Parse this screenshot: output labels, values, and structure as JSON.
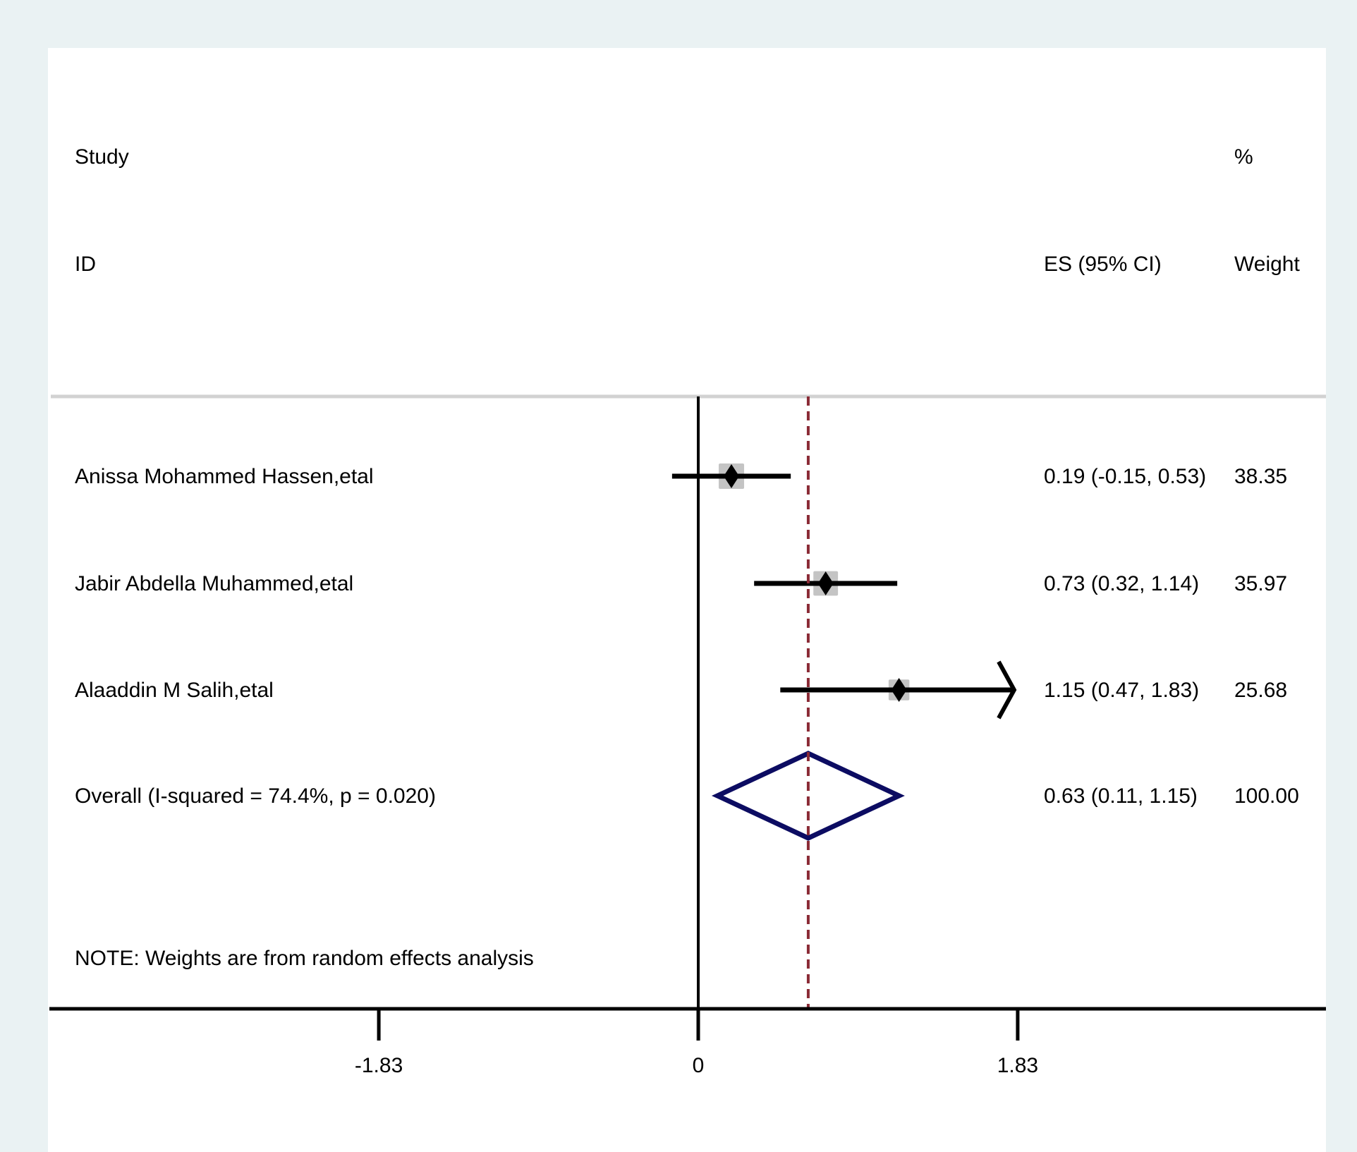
{
  "header": {
    "col1_line1": "Study",
    "col1_line2": "ID",
    "col2": "ES (95% CI)",
    "col3_line1": "%",
    "col3_line2": "Weight"
  },
  "note": "NOTE: Weights are from random effects analysis",
  "chart_data": {
    "type": "forest",
    "xlabel": "",
    "xlim": [
      -2.65,
      4.69
    ],
    "ticks": [
      -1.83,
      0,
      1.83
    ],
    "tick_labels": [
      "-1.83",
      "0",
      "1.83"
    ],
    "null_line": 0,
    "overall_line": 0.63,
    "studies": [
      {
        "id": "Anissa Mohammed Hassen,etal",
        "es": 0.19,
        "lo": -0.15,
        "hi": 0.53,
        "ci_text": "0.19 (-0.15, 0.53)",
        "weight": 38.35,
        "weight_text": "38.35",
        "clipped": false
      },
      {
        "id": "Jabir Abdella Muhammed,etal",
        "es": 0.73,
        "lo": 0.32,
        "hi": 1.14,
        "ci_text": "0.73 (0.32, 1.14)",
        "weight": 35.97,
        "weight_text": "35.97",
        "clipped": false
      },
      {
        "id": "Alaaddin M Salih,etal",
        "es": 1.15,
        "lo": 0.47,
        "hi": 1.83,
        "ci_text": "1.15 (0.47, 1.83)",
        "weight": 25.68,
        "weight_text": "25.68",
        "clipped": true
      }
    ],
    "overall": {
      "id": "Overall  (I-squared = 74.4%, p = 0.020)",
      "es": 0.63,
      "lo": 0.11,
      "hi": 1.15,
      "ci_text": "0.63 (0.11, 1.15)",
      "weight_text": "100.00"
    },
    "colors": {
      "background": "#eaf2f3",
      "panel": "#ffffff",
      "ci_line": "#000000",
      "weight_box": "#c4c4c4",
      "overall_diamond": "#0c0c62",
      "overall_line": "#8a2a35",
      "header_rule": "#d2d2d2"
    }
  }
}
